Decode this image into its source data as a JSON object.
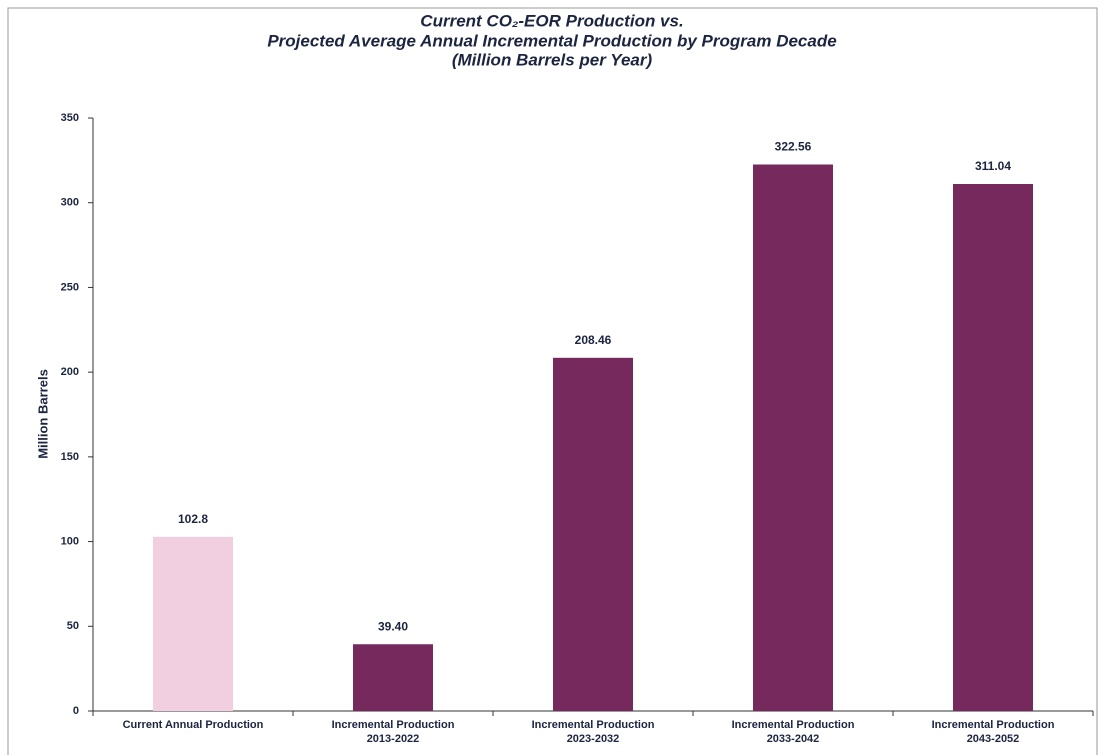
{
  "chart_data": {
    "type": "bar",
    "title": [
      "Current CO₂-EOR Production vs.",
      "Projected Average Annual Incremental Production by Program Decade",
      "(Million Barrels per Year)"
    ],
    "y_label": "Million Barrels",
    "categories": [
      [
        "Current Annual Production"
      ],
      [
        "Incremental Production",
        "2013-2022"
      ],
      [
        "Incremental Production",
        "2023-2032"
      ],
      [
        "Incremental Production",
        "2033-2042"
      ],
      [
        "Incremental Production",
        "2043-2052"
      ]
    ],
    "values": [
      102.8,
      39.4,
      208.46,
      322.56,
      311.04
    ],
    "value_labels": [
      "102.8",
      "39.40",
      "208.46",
      "322.56",
      "311.04"
    ],
    "colors": [
      "#f2cfe0",
      "#76295c",
      "#76295c",
      "#76295c",
      "#76295c"
    ],
    "ylim": [
      0,
      350
    ],
    "yticks": [
      0,
      50,
      100,
      150,
      200,
      250,
      300,
      350
    ],
    "grid": false
  }
}
